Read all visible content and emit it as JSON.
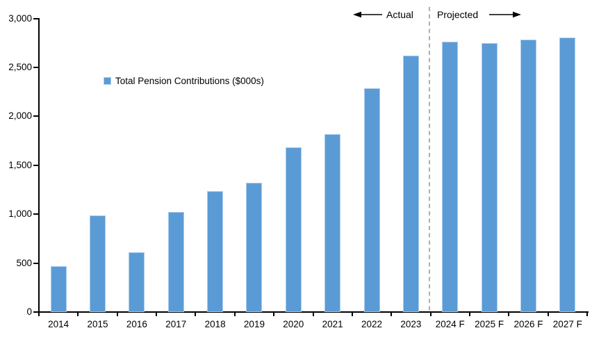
{
  "chart_data": {
    "type": "bar",
    "title": "",
    "legend": "Total Pension Contributions ($000s)",
    "categories": [
      "2014",
      "2015",
      "2016",
      "2017",
      "2018",
      "2019",
      "2020",
      "2021",
      "2022",
      "2023",
      "2024 F",
      "2025 F",
      "2026 F",
      "2027 F"
    ],
    "values": [
      470,
      990,
      610,
      1020,
      1235,
      1320,
      1685,
      1820,
      2285,
      2620,
      2760,
      2750,
      2785,
      2805
    ],
    "xlabel": "",
    "ylabel": "",
    "ylim": [
      0,
      3000
    ],
    "ytick_step": 500,
    "ytick_labels": [
      "0",
      "500",
      "1,000",
      "1,500",
      "2,000",
      "2,500",
      "3,000"
    ],
    "grid": false,
    "legend_position": "inside-upper-left",
    "annotations": {
      "actual_label": "Actual",
      "projected_label": "Projected",
      "divider_between": [
        "2023",
        "2024 F"
      ]
    },
    "colors": {
      "bar_fill": "#5B9BD5",
      "bar_edge": "#A9CCED",
      "axis": "#000000",
      "divider": "#A6A6A6",
      "text": "#000000"
    }
  }
}
